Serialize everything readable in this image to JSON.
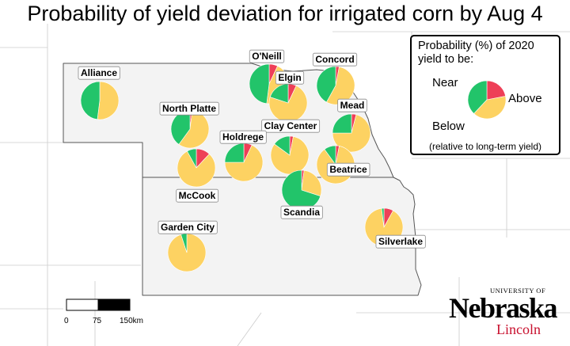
{
  "title": "Probability of yield deviation for irrigated corn by Aug 4",
  "legend": {
    "title": "Probability (%) of 2020 yield to be:",
    "near": "Near",
    "above": "Above",
    "below": "Below",
    "note": "(relative to long-term yield)",
    "sample_pie": {
      "above": 38,
      "near": 40,
      "below": 22
    }
  },
  "colors": {
    "above": "#22c46a",
    "near": "#fdd262",
    "below": "#ee3f57",
    "state_fill": "#f3f3f3",
    "state_border": "#555555",
    "county_line": "#cccccc"
  },
  "scale_bar": {
    "ticks": [
      "0",
      "75",
      "150km"
    ]
  },
  "logo": {
    "university": "UNIVERSITY OF",
    "name": "Nebraska",
    "campus": "Lincoln"
  },
  "sites": [
    {
      "name": "Alliance",
      "above": 48,
      "near": 52,
      "below": 0
    },
    {
      "name": "North Platte",
      "above": 40,
      "near": 58,
      "below": 2
    },
    {
      "name": "O'Neill",
      "above": 48,
      "near": 45,
      "below": 7
    },
    {
      "name": "Elgin",
      "above": 20,
      "near": 73,
      "below": 7
    },
    {
      "name": "Concord",
      "above": 42,
      "near": 55,
      "below": 3
    },
    {
      "name": "Mead",
      "above": 25,
      "near": 71,
      "below": 4
    },
    {
      "name": "Clay Center",
      "above": 15,
      "near": 82,
      "below": 3
    },
    {
      "name": "Holdrege",
      "above": 25,
      "near": 68,
      "below": 7
    },
    {
      "name": "McCook",
      "above": 8,
      "near": 80,
      "below": 12
    },
    {
      "name": "Beatrice",
      "above": 10,
      "near": 87,
      "below": 3
    },
    {
      "name": "Scandia",
      "above": 70,
      "near": 28,
      "below": 2
    },
    {
      "name": "Silverlake",
      "above": 2,
      "near": 90,
      "below": 8
    },
    {
      "name": "Garden City",
      "above": 5,
      "near": 95,
      "below": 0
    }
  ]
}
